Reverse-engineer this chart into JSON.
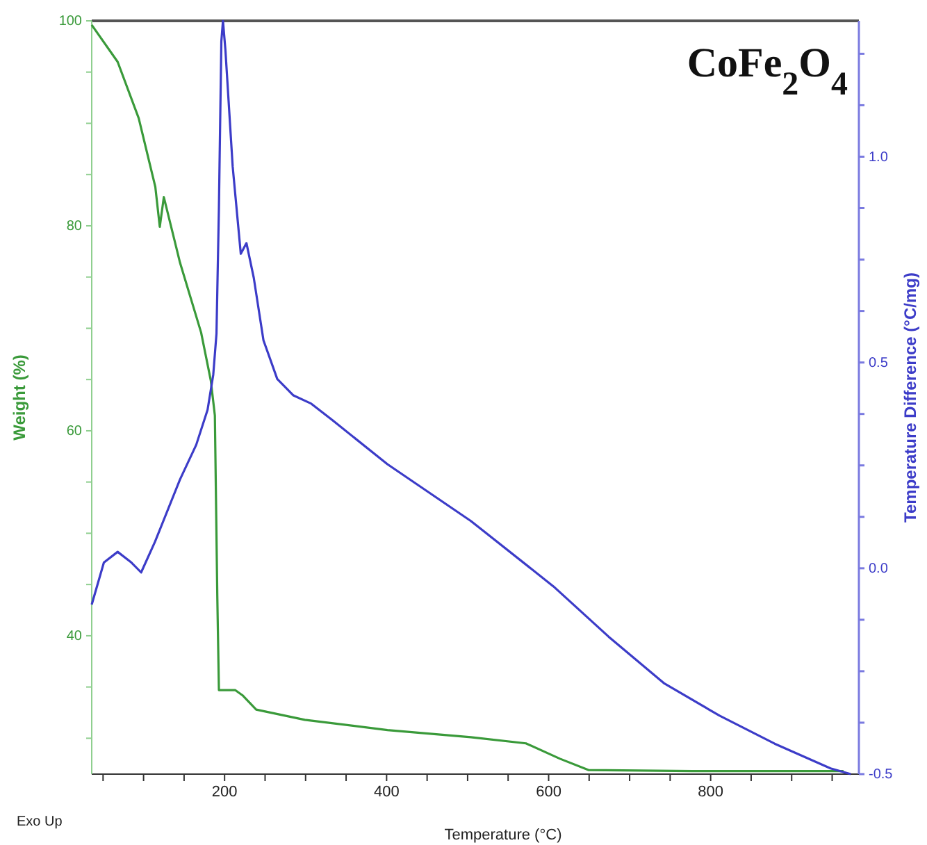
{
  "chart_data": {
    "type": "line",
    "title": "CoFe$_{2}$O$_{4}$",
    "xlabel": "Temperature (°C)",
    "ylabel": "Weight (%)",
    "y2label": "Temperature Difference (°C/mg)",
    "annotations": [
      "Exo Up"
    ],
    "xlim": [
      36,
      983
    ],
    "xticks": [
      {
        "value": 50,
        "label": null
      },
      {
        "value": 100,
        "label": null
      },
      {
        "value": 150,
        "label": null
      },
      200,
      {
        "value": 250,
        "label": null
      },
      {
        "value": 300,
        "label": null
      },
      {
        "value": 350,
        "label": null
      },
      400,
      {
        "value": 450,
        "label": null
      },
      {
        "value": 500,
        "label": null
      },
      {
        "value": 550,
        "label": null
      },
      600,
      {
        "value": 650,
        "label": null
      },
      {
        "value": 700,
        "label": null
      },
      {
        "value": 750,
        "label": null
      },
      800,
      {
        "value": 850,
        "label": null
      },
      {
        "value": 900,
        "label": null
      },
      {
        "value": 950,
        "label": null
      }
    ],
    "ylim": [
      26.5,
      100
    ],
    "yticks": [
      {
        "value": 30,
        "label": null
      },
      {
        "value": 35,
        "label": null
      },
      40,
      {
        "value": 45,
        "label": null
      },
      {
        "value": 50,
        "label": null
      },
      {
        "value": 55,
        "label": null
      },
      60,
      {
        "value": 65,
        "label": null
      },
      {
        "value": 70,
        "label": null
      },
      {
        "value": 75,
        "label": null
      },
      80,
      {
        "value": 85,
        "label": null
      },
      {
        "value": 90,
        "label": null
      },
      {
        "value": 95,
        "label": null
      },
      100
    ],
    "y2lim": [
      -0.5,
      1.33
    ],
    "y2ticks": [
      -0.5,
      {
        "value": -0.375,
        "label": null
      },
      {
        "value": -0.25,
        "label": null
      },
      {
        "value": -0.125,
        "label": null
      },
      {
        "value": 0,
        "label": "0.0"
      },
      {
        "value": 0.125,
        "label": null
      },
      {
        "value": 0.25,
        "label": null
      },
      {
        "value": 0.375,
        "label": null
      },
      0.5,
      {
        "value": 0.625,
        "label": null
      },
      {
        "value": 0.75,
        "label": null
      },
      {
        "value": 0.875,
        "label": null
      },
      {
        "value": 1,
        "label": "1.0"
      },
      {
        "value": 1.125,
        "label": null
      },
      {
        "value": 1.25,
        "label": null
      }
    ],
    "grid": false,
    "marker": "none",
    "line_style": "solid",
    "series": [
      {
        "color": "#3a9a3a",
        "x": [
          36,
          68,
          94,
          114.5,
          120,
          125,
          145,
          171,
          183,
          188,
          191,
          193,
          213,
          222,
          239,
          299,
          401,
          504,
          572,
          614,
          649,
          777,
          964
        ],
        "values": [
          99.6,
          96,
          90.5,
          83.8,
          79.9,
          82.8,
          76.4,
          69.6,
          64.9,
          61.5,
          43.9,
          34.7,
          34.7,
          34.2,
          32.8,
          31.8,
          30.8,
          30.1,
          29.5,
          28.0,
          26.9,
          26.8,
          26.8
        ]
      },
      {
        "color": "#3c3cc8",
        "axis": "y2",
        "x": [
          36,
          51,
          68,
          85,
          97,
          114,
          145,
          165,
          179,
          186,
          190,
          193,
          196,
          198,
          201,
          210,
          220,
          227,
          236,
          248,
          265,
          285,
          307,
          333,
          401,
          504,
          606,
          674,
          743,
          811,
          879,
          948,
          973
        ],
        "values": [
          -0.088,
          0.014,
          0.04,
          0.014,
          -0.01,
          0.064,
          0.216,
          0.3,
          0.385,
          0.47,
          0.57,
          0.875,
          1.28,
          1.33,
          1.26,
          0.976,
          0.764,
          0.79,
          0.706,
          0.554,
          0.46,
          0.42,
          0.4,
          0.36,
          0.253,
          0.115,
          -0.044,
          -0.166,
          -0.28,
          -0.358,
          -0.426,
          -0.486,
          -0.5
        ]
      }
    ]
  }
}
